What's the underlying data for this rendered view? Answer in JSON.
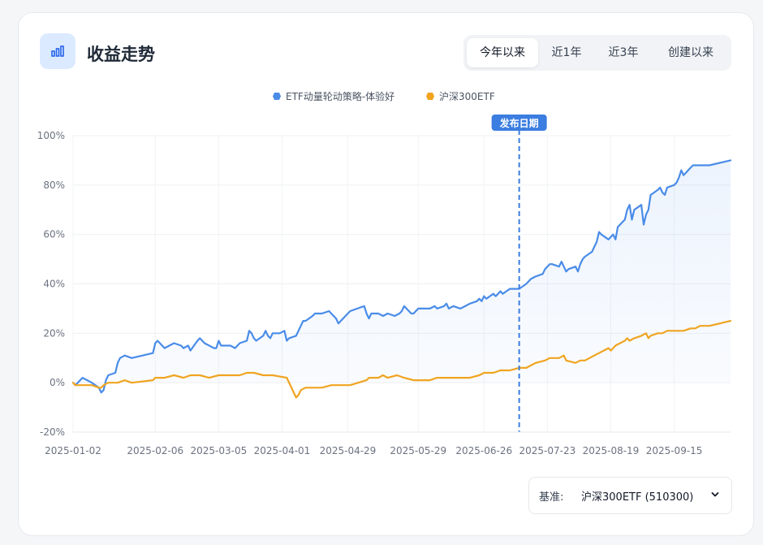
{
  "header": {
    "title": "收益走势",
    "icon": "bar-chart-icon"
  },
  "range_tabs": [
    {
      "label": "今年以来",
      "active": true
    },
    {
      "label": "近1年",
      "active": false
    },
    {
      "label": "近3年",
      "active": false
    },
    {
      "label": "创建以来",
      "active": false
    }
  ],
  "benchmark": {
    "label": "基准:",
    "value": "沪深300ETF (510300)"
  },
  "colors": {
    "strategy": "#4a8ce8",
    "benchmark": "#f0a420",
    "publish_marker": "#3b7de0",
    "accent": "#dbeafe"
  },
  "chart_data": {
    "type": "line",
    "ylim": [
      -20,
      100
    ],
    "yticks": [
      "100%",
      "80%",
      "60%",
      "40%",
      "20%",
      "0%",
      "-20%"
    ],
    "ytick_values": [
      100,
      80,
      60,
      40,
      20,
      0,
      -20
    ],
    "xticks": [
      "2025-01-02",
      "2025-02-06",
      "2025-03-05",
      "2025-04-01",
      "2025-04-29",
      "2025-05-29",
      "2025-06-26",
      "2025-07-23",
      "2025-08-19",
      "2025-09-15"
    ],
    "x_end": "2025-10-09",
    "grid": true,
    "legend_position": "top-center",
    "annotation": {
      "label": "发布日期",
      "x": "2025-07-11"
    },
    "series": [
      {
        "name": "ETF动量轮动策略-体验好",
        "area_fill": true,
        "points": [
          [
            "2025-01-02",
            0
          ],
          [
            "2025-01-03",
            -1
          ],
          [
            "2025-01-06",
            2
          ],
          [
            "2025-01-08",
            1
          ],
          [
            "2025-01-10",
            0
          ],
          [
            "2025-01-13",
            -2
          ],
          [
            "2025-01-14",
            -4
          ],
          [
            "2025-01-15",
            -3
          ],
          [
            "2025-01-16",
            1
          ],
          [
            "2025-01-17",
            3
          ],
          [
            "2025-01-20",
            4
          ],
          [
            "2025-01-21",
            8
          ],
          [
            "2025-01-22",
            10
          ],
          [
            "2025-01-24",
            11
          ],
          [
            "2025-01-27",
            10
          ],
          [
            "2025-02-05",
            12
          ],
          [
            "2025-02-06",
            16
          ],
          [
            "2025-02-07",
            17
          ],
          [
            "2025-02-10",
            14
          ],
          [
            "2025-02-12",
            15
          ],
          [
            "2025-02-14",
            16
          ],
          [
            "2025-02-17",
            15
          ],
          [
            "2025-02-18",
            14
          ],
          [
            "2025-02-20",
            15
          ],
          [
            "2025-02-21",
            13
          ],
          [
            "2025-02-24",
            17
          ],
          [
            "2025-02-25",
            18
          ],
          [
            "2025-02-27",
            16
          ],
          [
            "2025-03-03",
            14
          ],
          [
            "2025-03-04",
            14
          ],
          [
            "2025-03-05",
            17
          ],
          [
            "2025-03-06",
            15
          ],
          [
            "2025-03-10",
            15
          ],
          [
            "2025-03-12",
            14
          ],
          [
            "2025-03-14",
            16
          ],
          [
            "2025-03-17",
            17
          ],
          [
            "2025-03-18",
            21
          ],
          [
            "2025-03-19",
            20
          ],
          [
            "2025-03-20",
            18
          ],
          [
            "2025-03-21",
            17
          ],
          [
            "2025-03-24",
            19
          ],
          [
            "2025-03-25",
            21
          ],
          [
            "2025-03-26",
            19
          ],
          [
            "2025-03-27",
            18
          ],
          [
            "2025-03-28",
            20
          ],
          [
            "2025-03-31",
            20
          ],
          [
            "2025-04-02",
            21
          ],
          [
            "2025-04-03",
            17
          ],
          [
            "2025-04-04",
            18
          ],
          [
            "2025-04-07",
            19
          ],
          [
            "2025-04-08",
            21
          ],
          [
            "2025-04-09",
            23
          ],
          [
            "2025-04-10",
            25
          ],
          [
            "2025-04-11",
            25
          ],
          [
            "2025-04-14",
            27
          ],
          [
            "2025-04-15",
            28
          ],
          [
            "2025-04-16",
            28
          ],
          [
            "2025-04-18",
            28
          ],
          [
            "2025-04-21",
            29
          ],
          [
            "2025-04-22",
            28
          ],
          [
            "2025-04-24",
            26
          ],
          [
            "2025-04-25",
            24
          ],
          [
            "2025-04-28",
            27
          ],
          [
            "2025-04-29",
            28
          ],
          [
            "2025-04-30",
            29
          ],
          [
            "2025-05-06",
            31
          ],
          [
            "2025-05-07",
            28
          ],
          [
            "2025-05-08",
            26
          ],
          [
            "2025-05-09",
            28
          ],
          [
            "2025-05-12",
            28
          ],
          [
            "2025-05-14",
            27
          ],
          [
            "2025-05-16",
            28
          ],
          [
            "2025-05-19",
            27
          ],
          [
            "2025-05-21",
            28
          ],
          [
            "2025-05-22",
            29
          ],
          [
            "2025-05-23",
            31
          ],
          [
            "2025-05-26",
            28
          ],
          [
            "2025-05-27",
            28
          ],
          [
            "2025-05-29",
            30
          ],
          [
            "2025-06-03",
            30
          ],
          [
            "2025-06-05",
            31
          ],
          [
            "2025-06-06",
            30
          ],
          [
            "2025-06-09",
            31
          ],
          [
            "2025-06-10",
            32
          ],
          [
            "2025-06-11",
            30
          ],
          [
            "2025-06-13",
            31
          ],
          [
            "2025-06-16",
            30
          ],
          [
            "2025-06-18",
            31
          ],
          [
            "2025-06-20",
            32
          ],
          [
            "2025-06-23",
            33
          ],
          [
            "2025-06-24",
            34
          ],
          [
            "2025-06-25",
            33
          ],
          [
            "2025-06-26",
            35
          ],
          [
            "2025-06-27",
            34
          ],
          [
            "2025-06-30",
            36
          ],
          [
            "2025-07-01",
            35
          ],
          [
            "2025-07-03",
            37
          ],
          [
            "2025-07-04",
            36
          ],
          [
            "2025-07-07",
            38
          ],
          [
            "2025-07-09",
            38
          ],
          [
            "2025-07-11",
            38
          ],
          [
            "2025-07-14",
            40
          ],
          [
            "2025-07-16",
            42
          ],
          [
            "2025-07-18",
            43
          ],
          [
            "2025-07-21",
            44
          ],
          [
            "2025-07-22",
            46
          ],
          [
            "2025-07-24",
            48
          ],
          [
            "2025-07-25",
            48
          ],
          [
            "2025-07-28",
            47
          ],
          [
            "2025-07-29",
            49
          ],
          [
            "2025-07-30",
            47
          ],
          [
            "2025-07-31",
            45
          ],
          [
            "2025-08-01",
            46
          ],
          [
            "2025-08-04",
            47
          ],
          [
            "2025-08-05",
            45
          ],
          [
            "2025-08-06",
            48
          ],
          [
            "2025-08-07",
            50
          ],
          [
            "2025-08-08",
            51
          ],
          [
            "2025-08-11",
            53
          ],
          [
            "2025-08-12",
            55
          ],
          [
            "2025-08-13",
            57
          ],
          [
            "2025-08-14",
            61
          ],
          [
            "2025-08-15",
            60
          ],
          [
            "2025-08-18",
            58
          ],
          [
            "2025-08-19",
            59
          ],
          [
            "2025-08-20",
            60
          ],
          [
            "2025-08-21",
            58
          ],
          [
            "2025-08-22",
            63
          ],
          [
            "2025-08-25",
            66
          ],
          [
            "2025-08-26",
            70
          ],
          [
            "2025-08-27",
            72
          ],
          [
            "2025-08-28",
            66
          ],
          [
            "2025-08-29",
            70
          ],
          [
            "2025-09-01",
            72
          ],
          [
            "2025-09-02",
            64
          ],
          [
            "2025-09-03",
            68
          ],
          [
            "2025-09-04",
            70
          ],
          [
            "2025-09-05",
            76
          ],
          [
            "2025-09-08",
            78
          ],
          [
            "2025-09-09",
            79
          ],
          [
            "2025-09-10",
            77
          ],
          [
            "2025-09-11",
            76
          ],
          [
            "2025-09-12",
            79
          ],
          [
            "2025-09-15",
            80
          ],
          [
            "2025-09-16",
            81
          ],
          [
            "2025-09-17",
            83
          ],
          [
            "2025-09-18",
            86
          ],
          [
            "2025-09-19",
            84
          ],
          [
            "2025-09-22",
            87
          ],
          [
            "2025-09-23",
            88
          ],
          [
            "2025-09-24",
            88
          ],
          [
            "2025-09-26",
            88
          ],
          [
            "2025-09-29",
            88
          ],
          [
            "2025-09-30",
            88
          ],
          [
            "2025-10-09",
            90
          ]
        ]
      },
      {
        "name": "沪深300ETF",
        "area_fill": false,
        "points": [
          [
            "2025-01-02",
            0
          ],
          [
            "2025-01-03",
            -1
          ],
          [
            "2025-01-06",
            -1
          ],
          [
            "2025-01-08",
            -1
          ],
          [
            "2025-01-10",
            -1
          ],
          [
            "2025-01-13",
            -2
          ],
          [
            "2025-01-14",
            -2
          ],
          [
            "2025-01-15",
            -1
          ],
          [
            "2025-01-17",
            0
          ],
          [
            "2025-01-21",
            0
          ],
          [
            "2025-01-24",
            1
          ],
          [
            "2025-01-27",
            0
          ],
          [
            "2025-02-05",
            1
          ],
          [
            "2025-02-06",
            2
          ],
          [
            "2025-02-10",
            2
          ],
          [
            "2025-02-14",
            3
          ],
          [
            "2025-02-18",
            2
          ],
          [
            "2025-02-21",
            3
          ],
          [
            "2025-02-25",
            3
          ],
          [
            "2025-03-01",
            2
          ],
          [
            "2025-03-05",
            3
          ],
          [
            "2025-03-10",
            3
          ],
          [
            "2025-03-14",
            3
          ],
          [
            "2025-03-17",
            4
          ],
          [
            "2025-03-20",
            4
          ],
          [
            "2025-03-24",
            3
          ],
          [
            "2025-03-28",
            3
          ],
          [
            "2025-04-03",
            2
          ],
          [
            "2025-04-07",
            -6
          ],
          [
            "2025-04-08",
            -5
          ],
          [
            "2025-04-09",
            -3
          ],
          [
            "2025-04-11",
            -2
          ],
          [
            "2025-04-14",
            -2
          ],
          [
            "2025-04-18",
            -2
          ],
          [
            "2025-04-22",
            -1
          ],
          [
            "2025-04-25",
            -1
          ],
          [
            "2025-04-29",
            -1
          ],
          [
            "2025-04-30",
            -1
          ],
          [
            "2025-05-07",
            1
          ],
          [
            "2025-05-08",
            2
          ],
          [
            "2025-05-12",
            2
          ],
          [
            "2025-05-14",
            3
          ],
          [
            "2025-05-16",
            2
          ],
          [
            "2025-05-20",
            3
          ],
          [
            "2025-05-23",
            2
          ],
          [
            "2025-05-27",
            1
          ],
          [
            "2025-05-29",
            1
          ],
          [
            "2025-06-03",
            1
          ],
          [
            "2025-06-06",
            2
          ],
          [
            "2025-06-10",
            2
          ],
          [
            "2025-06-13",
            2
          ],
          [
            "2025-06-17",
            2
          ],
          [
            "2025-06-20",
            2
          ],
          [
            "2025-06-24",
            3
          ],
          [
            "2025-06-26",
            4
          ],
          [
            "2025-06-30",
            4
          ],
          [
            "2025-07-03",
            5
          ],
          [
            "2025-07-07",
            5
          ],
          [
            "2025-07-11",
            6
          ],
          [
            "2025-07-14",
            6
          ],
          [
            "2025-07-16",
            7
          ],
          [
            "2025-07-18",
            8
          ],
          [
            "2025-07-22",
            9
          ],
          [
            "2025-07-24",
            10
          ],
          [
            "2025-07-28",
            10
          ],
          [
            "2025-07-30",
            11
          ],
          [
            "2025-07-31",
            9
          ],
          [
            "2025-08-04",
            8
          ],
          [
            "2025-08-06",
            9
          ],
          [
            "2025-08-08",
            9
          ],
          [
            "2025-08-12",
            11
          ],
          [
            "2025-08-14",
            12
          ],
          [
            "2025-08-18",
            14
          ],
          [
            "2025-08-19",
            13
          ],
          [
            "2025-08-21",
            15
          ],
          [
            "2025-08-25",
            17
          ],
          [
            "2025-08-26",
            18
          ],
          [
            "2025-08-27",
            17
          ],
          [
            "2025-08-29",
            18
          ],
          [
            "2025-09-01",
            19
          ],
          [
            "2025-09-03",
            20
          ],
          [
            "2025-09-04",
            18
          ],
          [
            "2025-09-05",
            19
          ],
          [
            "2025-09-08",
            20
          ],
          [
            "2025-09-10",
            20
          ],
          [
            "2025-09-12",
            21
          ],
          [
            "2025-09-15",
            21
          ],
          [
            "2025-09-17",
            21
          ],
          [
            "2025-09-19",
            21
          ],
          [
            "2025-09-22",
            22
          ],
          [
            "2025-09-24",
            22
          ],
          [
            "2025-09-26",
            23
          ],
          [
            "2025-09-30",
            23
          ],
          [
            "2025-10-09",
            25
          ]
        ]
      }
    ]
  }
}
